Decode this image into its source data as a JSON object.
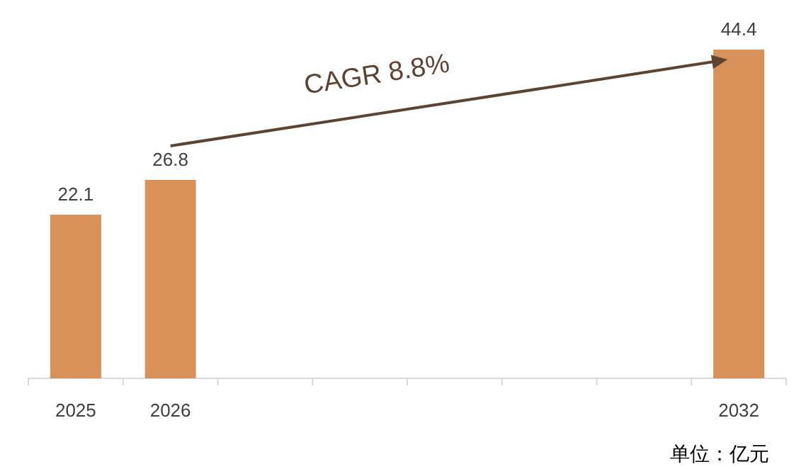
{
  "chart_data": {
    "type": "bar",
    "categories": [
      "2025",
      "2026",
      null,
      null,
      null,
      null,
      null,
      "2032"
    ],
    "values": [
      22.1,
      26.8,
      null,
      null,
      null,
      null,
      null,
      44.4
    ],
    "color": "#d79159",
    "data_labels": true,
    "annotations": [
      "CAGR 8.8%",
      "单位：亿元"
    ]
  }
}
